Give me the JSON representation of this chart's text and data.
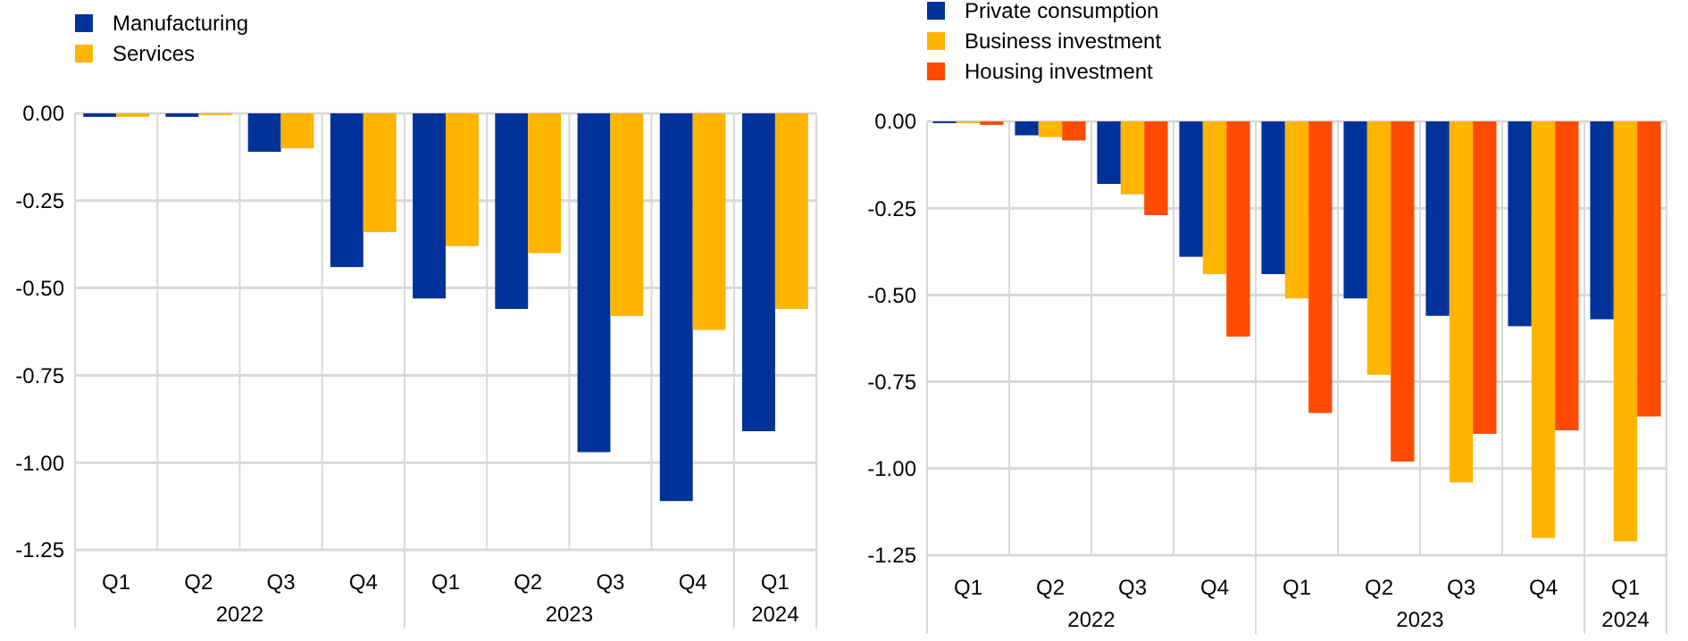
{
  "chart_data": [
    {
      "type": "bar",
      "categories": [
        "Q1",
        "Q2",
        "Q3",
        "Q4",
        "Q1",
        "Q2",
        "Q3",
        "Q4",
        "Q1"
      ],
      "annotations": [
        "2022",
        "2023",
        "2024"
      ],
      "ylim": [
        -1.25,
        0
      ],
      "yticks": [
        {
          "value": 0,
          "label": "0.00"
        },
        {
          "value": -0.25,
          "label": "-0.25"
        },
        {
          "value": -0.5,
          "label": "-0.50"
        },
        {
          "value": -0.75,
          "label": "-0.75"
        },
        {
          "value": -1,
          "label": "-1.00"
        },
        {
          "value": -1.25,
          "label": "-1.25"
        }
      ],
      "grid": true,
      "legend": "top left",
      "series": [
        {
          "name": "Manufacturing",
          "color": "#003299",
          "values": [
            -0.01,
            -0.01,
            -0.11,
            -0.44,
            -0.53,
            -0.56,
            -0.97,
            -1.11,
            -0.91
          ]
        },
        {
          "name": "Services",
          "color": "#ffb400",
          "values": [
            -0.01,
            -0.005,
            -0.1,
            -0.34,
            -0.38,
            -0.4,
            -0.58,
            -0.62,
            -0.56
          ]
        }
      ]
    },
    {
      "type": "bar",
      "categories": [
        "Q1",
        "Q2",
        "Q3",
        "Q4",
        "Q1",
        "Q2",
        "Q3",
        "Q4",
        "Q1"
      ],
      "annotations": [
        "2022",
        "2023",
        "2024"
      ],
      "ylim": [
        -1.25,
        0
      ],
      "yticks": [
        {
          "value": 0,
          "label": "0.00"
        },
        {
          "value": -0.25,
          "label": "-0.25"
        },
        {
          "value": -0.5,
          "label": "-0.50"
        },
        {
          "value": -0.75,
          "label": "-0.75"
        },
        {
          "value": -1,
          "label": "-1.00"
        },
        {
          "value": -1.25,
          "label": "-1.25"
        }
      ],
      "grid": true,
      "legend": "top left",
      "series": [
        {
          "name": "Private consumption",
          "color": "#003299",
          "values": [
            -0.005,
            -0.04,
            -0.18,
            -0.39,
            -0.44,
            -0.51,
            -0.56,
            -0.59,
            -0.57
          ]
        },
        {
          "name": "Business investment",
          "color": "#ffb400",
          "values": [
            -0.005,
            -0.045,
            -0.21,
            -0.44,
            -0.51,
            -0.73,
            -1.04,
            -1.2,
            -1.21
          ]
        },
        {
          "name": "Housing investment",
          "color": "#ff4b00",
          "values": [
            -0.01,
            -0.055,
            -0.27,
            -0.62,
            -0.84,
            -0.98,
            -0.9,
            -0.89,
            -0.85
          ]
        }
      ]
    }
  ]
}
